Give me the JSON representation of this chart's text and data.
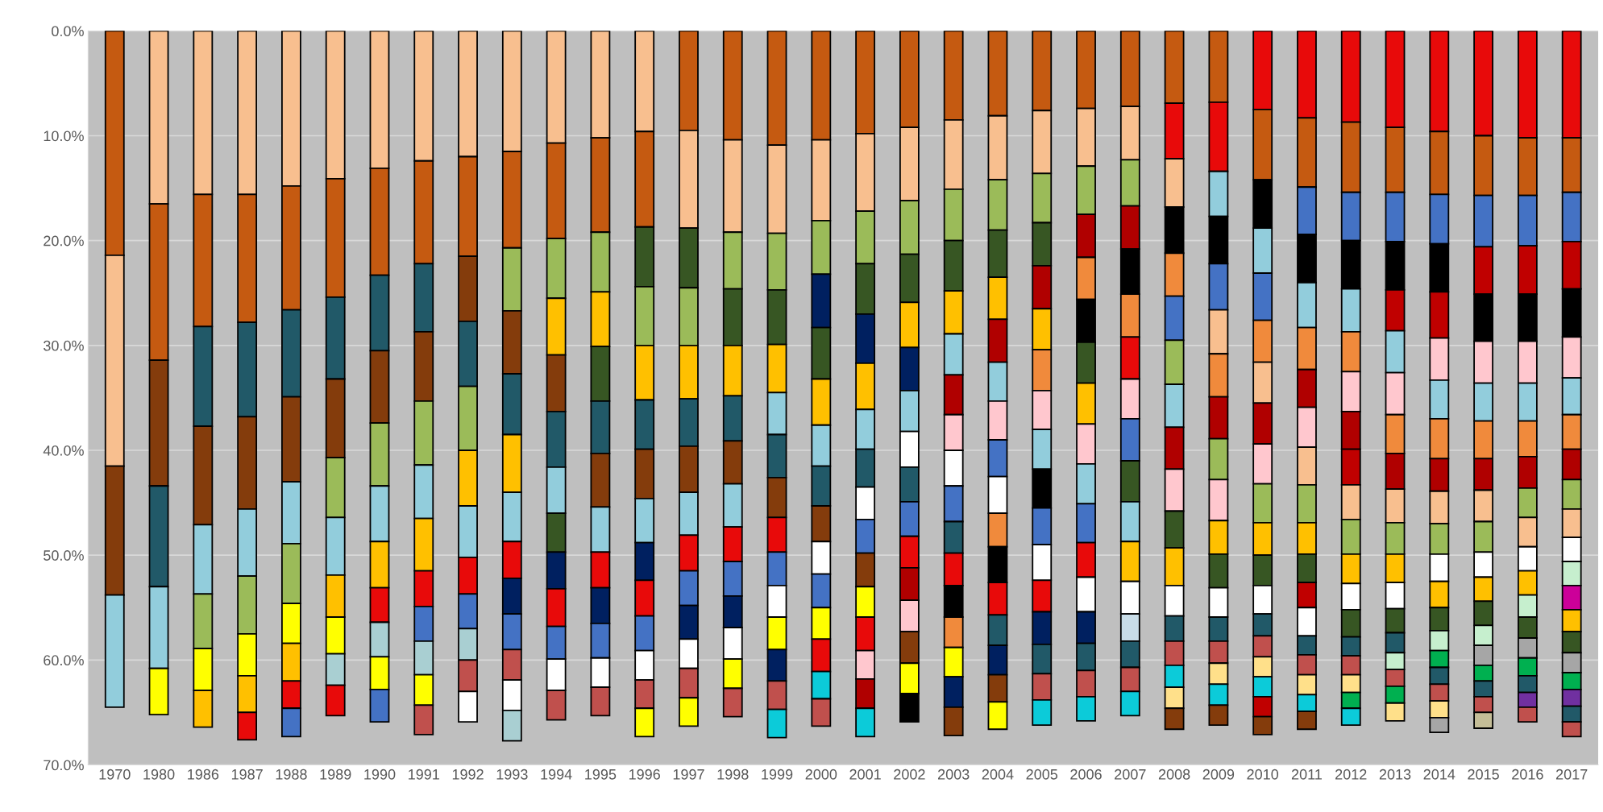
{
  "chart_data": {
    "type": "bar",
    "stacked": true,
    "grid": "y",
    "categories": [
      "1970",
      "1980",
      "1986",
      "1987",
      "1988",
      "1989",
      "1990",
      "1991",
      "1992",
      "1993",
      "1994",
      "1995",
      "1996",
      "1997",
      "1998",
      "1999",
      "2000",
      "2001",
      "2002",
      "2003",
      "2004",
      "2005",
      "2006",
      "2007",
      "2008",
      "2009",
      "2010",
      "2011",
      "2012",
      "2013",
      "2014",
      "2015",
      "2016",
      "2017"
    ],
    "ylim": [
      70,
      0
    ],
    "yticks": [
      {
        "value": 0,
        "label": "0.0%"
      },
      {
        "value": 10,
        "label": "10.0%"
      },
      {
        "value": 20,
        "label": "20.0%"
      },
      {
        "value": 30,
        "label": "30.0%"
      },
      {
        "value": 40,
        "label": "40.0%"
      },
      {
        "value": 50,
        "label": "50.0%"
      },
      {
        "value": 60,
        "label": "60.0%"
      },
      {
        "value": 70,
        "label": "70.0%"
      }
    ],
    "series": [
      {
        "values": [
          21.4,
          16.5,
          15.6,
          15.6,
          14.8,
          14.1,
          13.1,
          12.4,
          12.0,
          11.5,
          10.7,
          10.2,
          9.6,
          9.5,
          10.4,
          10.9,
          10.4,
          9.8,
          9.2,
          8.5,
          8.1,
          7.6,
          7.4,
          7.2,
          6.9,
          6.8,
          7.5,
          8.3,
          8.7,
          9.2,
          9.6,
          10.0,
          10.2,
          10.2
        ],
        "colors": [
          "#c55a11",
          "#f8bf8f",
          "#f8bf8f",
          "#f8bf8f",
          "#f8bf8f",
          "#f8bf8f",
          "#f8bf8f",
          "#f8bf8f",
          "#f8bf8f",
          "#f8bf8f",
          "#f8bf8f",
          "#f8bf8f",
          "#f8bf8f",
          "#c55a11",
          "#c55a11",
          "#c55a11",
          "#c55a11",
          "#c55a11",
          "#c55a11",
          "#c55a11",
          "#c55a11",
          "#c55a11",
          "#c55a11",
          "#c55a11",
          "#c55a11",
          "#c55a11",
          "#e80a0a",
          "#e80a0a",
          "#e80a0a",
          "#e80a0a",
          "#e80a0a",
          "#e80a0a",
          "#e80a0a",
          "#e80a0a"
        ]
      },
      {
        "values": [
          20.1,
          14.9,
          12.6,
          12.2,
          11.8,
          11.3,
          10.2,
          9.8,
          9.5,
          9.2,
          9.1,
          9.0,
          9.1,
          9.3,
          8.8,
          8.4,
          7.7,
          7.4,
          7.0,
          6.6,
          6.1,
          6.0,
          5.5,
          5.1,
          5.3,
          6.6,
          6.7,
          6.6,
          6.7,
          6.2,
          6.0,
          5.7,
          5.5,
          5.2
        ],
        "colors": [
          "#f8bf8f",
          "#c55a11",
          "#c55a11",
          "#c55a11",
          "#c55a11",
          "#c55a11",
          "#c55a11",
          "#c55a11",
          "#c55a11",
          "#c55a11",
          "#c55a11",
          "#c55a11",
          "#c55a11",
          "#f8bf8f",
          "#f8bf8f",
          "#f8bf8f",
          "#f8bf8f",
          "#f8bf8f",
          "#f8bf8f",
          "#f8bf8f",
          "#f8bf8f",
          "#f8bf8f",
          "#f8bf8f",
          "#f8bf8f",
          "#e80a0a",
          "#e80a0a",
          "#c55a11",
          "#c55a11",
          "#c55a11",
          "#c55a11",
          "#c55a11",
          "#c55a11",
          "#c55a11",
          "#c55a11"
        ]
      },
      {
        "values": [
          12.3,
          12.0,
          9.5,
          9.0,
          8.3,
          7.8,
          7.2,
          6.5,
          6.2,
          6.0,
          5.7,
          5.7,
          5.7,
          5.7,
          5.4,
          5.4,
          5.1,
          5.0,
          5.1,
          4.9,
          4.8,
          4.7,
          4.6,
          4.4,
          4.6,
          4.3,
          4.6,
          4.5,
          4.6,
          4.7,
          4.7,
          4.9,
          4.8,
          4.7
        ],
        "colors": [
          "#843c0c",
          "#843c0c",
          "#215968",
          "#215968",
          "#215968",
          "#215968",
          "#215968",
          "#215968",
          "#843c0c",
          "#9bbb59",
          "#9bbb59",
          "#9bbb59",
          "#375623",
          "#375623",
          "#9bbb59",
          "#9bbb59",
          "#9bbb59",
          "#9bbb59",
          "#9bbb59",
          "#9bbb59",
          "#9bbb59",
          "#9bbb59",
          "#9bbb59",
          "#9bbb59",
          "#f8bf8f",
          "#92cddc",
          "#000000",
          "#4472c4",
          "#4472c4",
          "#4472c4",
          "#4472c4",
          "#4472c4",
          "#4472c4",
          "#4472c4"
        ]
      },
      {
        "values": [
          10.7,
          9.6,
          9.4,
          8.8,
          8.1,
          7.5,
          6.9,
          6.6,
          6.2,
          6.0,
          5.4,
          5.2,
          5.6,
          5.5,
          5.4,
          5.2,
          5.1,
          4.8,
          4.6,
          4.8,
          4.5,
          4.1,
          4.1,
          4.1,
          4.4,
          4.5,
          4.3,
          4.6,
          4.6,
          4.6,
          4.6,
          4.5,
          4.6,
          4.5
        ],
        "colors": [
          "#92cddc",
          "#215968",
          "#843c0c",
          "#843c0c",
          "#843c0c",
          "#843c0c",
          "#843c0c",
          "#843c0c",
          "#215968",
          "#843c0c",
          "#ffc000",
          "#ffc000",
          "#9bbb59",
          "#9bbb59",
          "#375623",
          "#375623",
          "#002060",
          "#375623",
          "#375623",
          "#375623",
          "#375623",
          "#375623",
          "#b00000",
          "#b00000",
          "#000000",
          "#000000",
          "#92cddc",
          "#000000",
          "#000000",
          "#000000",
          "#000000",
          "#c00000",
          "#c00000",
          "#c00000"
        ]
      },
      {
        "values": [
          null,
          7.8,
          6.6,
          6.4,
          5.9,
          5.7,
          6.0,
          6.1,
          6.1,
          5.8,
          5.4,
          5.2,
          5.2,
          5.1,
          4.8,
          4.6,
          4.9,
          4.7,
          4.3,
          4.1,
          4.0,
          4.1,
          4.0,
          4.3,
          4.1,
          4.4,
          4.5,
          4.3,
          4.1,
          3.9,
          4.4,
          4.5,
          4.5,
          4.6
        ],
        "colors": [
          null,
          "#92cddc",
          "#92cddc",
          "#92cddc",
          "#92cddc",
          "#9bbb59",
          "#9bbb59",
          "#9bbb59",
          "#9bbb59",
          "#215968",
          "#843c0c",
          "#375623",
          "#ffc000",
          "#ffc000",
          "#ffc000",
          "#ffc000",
          "#375623",
          "#002060",
          "#ffc000",
          "#ffc000",
          "#ffc000",
          "#b00000",
          "#f08a3c",
          "#000000",
          "#f08a3c",
          "#4472c4",
          "#4472c4",
          "#92cddc",
          "#92cddc",
          "#c00000",
          "#c00000",
          "#000000",
          "#000000",
          "#000000"
        ]
      },
      {
        "values": [
          null,
          4.4,
          5.2,
          5.5,
          5.7,
          5.5,
          5.3,
          5.1,
          5.3,
          5.5,
          5.3,
          5.0,
          4.7,
          4.5,
          4.3,
          4.0,
          4.4,
          4.4,
          4.1,
          3.9,
          4.1,
          3.9,
          4.1,
          4.1,
          4.2,
          4.2,
          4.0,
          4.0,
          3.8,
          4.0,
          4.0,
          4.0,
          4.0,
          3.9
        ],
        "colors": [
          null,
          "#ffff00",
          "#9bbb59",
          "#9bbb59",
          "#9bbb59",
          "#92cddc",
          "#92cddc",
          "#92cddc",
          "#ffc000",
          "#ffc000",
          "#215968",
          "#215968",
          "#215968",
          "#215968",
          "#215968",
          "#92cddc",
          "#ffc000",
          "#ffc000",
          "#002060",
          "#92cddc",
          "#b00000",
          "#ffc000",
          "#000000",
          "#f08a3c",
          "#4472c4",
          "#f8bf8f",
          "#f08a3c",
          "#f08a3c",
          "#f08a3c",
          "#92cddc",
          "#ffc7ce",
          "#ffc7ce",
          "#ffc7ce",
          "#ffc7ce"
        ]
      },
      {
        "values": [
          null,
          null,
          4.0,
          4.0,
          3.8,
          4.0,
          4.4,
          5.0,
          4.9,
          4.7,
          4.4,
          5.1,
          4.7,
          4.4,
          4.1,
          4.1,
          3.9,
          3.8,
          3.9,
          3.8,
          3.7,
          3.9,
          3.9,
          4.0,
          4.2,
          4.1,
          3.9,
          3.6,
          3.8,
          4.0,
          3.7,
          3.6,
          3.6,
          3.5
        ],
        "colors": [
          null,
          null,
          "#ffff00",
          "#ffff00",
          "#ffff00",
          "#ffc000",
          "#ffc000",
          "#ffc000",
          "#92cddc",
          "#92cddc",
          "#92cddc",
          "#843c0c",
          "#843c0c",
          "#843c0c",
          "#843c0c",
          "#215968",
          "#92cddc",
          "#92cddc",
          "#92cddc",
          "#b00000",
          "#92cddc",
          "#f08a3c",
          "#375623",
          "#e80a0a",
          "#9bbb59",
          "#f08a3c",
          "#f8bf8f",
          "#b00000",
          "#ffc7ce",
          "#ffc7ce",
          "#92cddc",
          "#92cddc",
          "#92cddc",
          "#92cddc"
        ]
      },
      {
        "values": [
          null,
          null,
          3.5,
          3.5,
          3.6,
          3.5,
          3.3,
          3.4,
          3.5,
          3.5,
          3.7,
          4.3,
          4.2,
          4.1,
          4.1,
          3.8,
          3.8,
          3.6,
          3.4,
          3.4,
          3.7,
          3.7,
          3.9,
          3.8,
          4.1,
          4.0,
          3.9,
          3.8,
          3.6,
          3.7,
          3.8,
          3.6,
          3.4,
          3.3
        ],
        "colors": [
          null,
          null,
          "#ffc000",
          "#ffc000",
          "#ffc000",
          "#ffff00",
          "#e80a0a",
          "#e80a0a",
          "#e80a0a",
          "#e80a0a",
          "#375623",
          "#92cddc",
          "#92cddc",
          "#92cddc",
          "#92cddc",
          "#843c0c",
          "#215968",
          "#215968",
          "#ffffff",
          "#ffc7ce",
          "#ffc7ce",
          "#ffc7ce",
          "#ffc000",
          "#ffc7ce",
          "#92cddc",
          "#b00000",
          "#b00000",
          "#ffc7ce",
          "#b00000",
          "#f08a3c",
          "#f08a3c",
          "#f08a3c",
          "#f08a3c",
          "#f08a3c"
        ]
      },
      {
        "values": [
          null,
          null,
          null,
          2.6,
          2.6,
          3.0,
          3.3,
          3.3,
          3.3,
          3.4,
          3.5,
          3.4,
          3.6,
          3.4,
          3.3,
          3.3,
          3.4,
          3.1,
          3.3,
          3.4,
          3.5,
          3.8,
          3.8,
          4.0,
          4.0,
          3.9,
          3.8,
          3.6,
          3.4,
          3.4,
          3.1,
          3.0,
          3.0,
          2.9
        ],
        "colors": [
          null,
          null,
          null,
          "#e80a0a",
          "#e80a0a",
          "#a9cfd2",
          "#a9cfd2",
          "#4472c4",
          "#4472c4",
          "#002060",
          "#002060",
          "#e80a0a",
          "#002060",
          "#e80a0a",
          "#e80a0a",
          "#e80a0a",
          "#843c0c",
          "#ffffff",
          "#215968",
          "#ffffff",
          "#4472c4",
          "#92cddc",
          "#ffc7ce",
          "#4472c4",
          "#b00000",
          "#9bbb59",
          "#ffc7ce",
          "#f8bf8f",
          "#c00000",
          "#b00000",
          "#b00000",
          "#b00000",
          "#b00000",
          "#b00000"
        ]
      },
      {
        "values": [
          null,
          null,
          null,
          null,
          2.7,
          2.9,
          3.1,
          3.2,
          3.0,
          3.4,
          3.6,
          3.4,
          3.4,
          3.3,
          3.3,
          3.2,
          3.1,
          3.2,
          3.3,
          3.4,
          3.5,
          3.7,
          3.8,
          3.9,
          4.0,
          3.9,
          3.7,
          3.6,
          3.3,
          3.2,
          3.1,
          3.0,
          2.8,
          2.8
        ],
        "colors": [
          null,
          null,
          null,
          null,
          "#4472c4",
          "#e80a0a",
          "#ffff00",
          "#a9cfd2",
          "#a9cfd2",
          "#4472c4",
          "#e80a0a",
          "#002060",
          "#e80a0a",
          "#4472c4",
          "#4472c4",
          "#4472c4",
          "#ffffff",
          "#4472c4",
          "#4472c4",
          "#4472c4",
          "#ffffff",
          "#000000",
          "#92cddc",
          "#375623",
          "#ffc7ce",
          "#ffc7ce",
          "#9bbb59",
          "#9bbb59",
          "#f8bf8f",
          "#f8bf8f",
          "#f8bf8f",
          "#f8bf8f",
          "#9bbb59",
          "#9bbb59"
        ]
      },
      {
        "values": [
          null,
          null,
          null,
          null,
          null,
          null,
          3.1,
          2.9,
          3.0,
          2.9,
          3.1,
          3.3,
          3.3,
          3.2,
          3.0,
          3.0,
          3.2,
          3.2,
          3.0,
          3.0,
          3.2,
          3.5,
          3.7,
          3.8,
          3.5,
          3.2,
          3.1,
          3.0,
          3.3,
          3.0,
          2.9,
          2.9,
          2.8,
          2.7
        ],
        "colors": [
          null,
          null,
          null,
          null,
          null,
          null,
          "#4472c4",
          "#ffff00",
          "#c0504d",
          "#c0504d",
          "#4472c4",
          "#4472c4",
          "#4472c4",
          "#002060",
          "#002060",
          "#ffffff",
          "#4472c4",
          "#843c0c",
          "#e80a0a",
          "#215968",
          "#f08a3c",
          "#4472c4",
          "#4472c4",
          "#92cddc",
          "#375623",
          "#ffc000",
          "#ffc000",
          "#ffc000",
          "#9bbb59",
          "#9bbb59",
          "#9bbb59",
          "#9bbb59",
          "#f8bf8f",
          "#f8bf8f"
        ]
      },
      {
        "values": [
          null,
          null,
          null,
          null,
          null,
          null,
          null,
          2.8,
          2.9,
          2.9,
          3.0,
          2.8,
          2.8,
          2.8,
          3.0,
          3.1,
          3.0,
          2.9,
          3.1,
          3.1,
          3.4,
          3.4,
          3.3,
          3.8,
          3.6,
          3.2,
          2.9,
          2.7,
          2.8,
          2.7,
          2.6,
          2.4,
          2.3,
          2.3
        ],
        "colors": [
          null,
          null,
          null,
          null,
          null,
          null,
          null,
          "#c0504d",
          "#ffffff",
          "#ffffff",
          "#ffffff",
          "#ffffff",
          "#ffffff",
          "#ffffff",
          "#ffffff",
          "#ffff00",
          "#ffff00",
          "#ffff00",
          "#b00000",
          "#e80a0a",
          "#000000",
          "#ffffff",
          "#e80a0a",
          "#ffc000",
          "#ffc000",
          "#375623",
          "#375623",
          "#375623",
          "#ffc000",
          "#ffc000",
          "#ffffff",
          "#ffffff",
          "#ffffff",
          "#ffffff"
        ]
      },
      {
        "values": [
          null,
          null,
          null,
          null,
          null,
          null,
          null,
          null,
          null,
          2.9,
          2.8,
          2.7,
          2.7,
          2.8,
          2.8,
          3.0,
          3.1,
          3.2,
          3.0,
          3.0,
          3.1,
          3.0,
          3.3,
          3.1,
          2.9,
          2.8,
          2.7,
          2.4,
          2.5,
          2.5,
          2.5,
          2.3,
          2.3,
          2.3
        ],
        "colors": [
          null,
          null,
          null,
          null,
          null,
          null,
          null,
          null,
          null,
          "#a9cfd2",
          "#c0504d",
          "#c0504d",
          "#c0504d",
          "#c0504d",
          "#ffff00",
          "#002060",
          "#e80a0a",
          "#e80a0a",
          "#ffc7ce",
          "#000000",
          "#e80a0a",
          "#e80a0a",
          "#ffffff",
          "#ffffff",
          "#ffffff",
          "#ffffff",
          "#ffffff",
          "#c00000",
          "#ffffff",
          "#ffffff",
          "#ffc000",
          "#ffc000",
          "#ffc000",
          "#c6efce"
        ]
      },
      {
        "values": [
          null,
          null,
          null,
          null,
          null,
          null,
          null,
          null,
          null,
          null,
          null,
          null,
          2.7,
          2.7,
          2.7,
          2.7,
          2.6,
          2.7,
          3.0,
          2.9,
          2.9,
          3.1,
          3.0,
          2.6,
          2.4,
          2.3,
          2.1,
          2.7,
          2.6,
          2.3,
          2.2,
          2.3,
          2.1,
          2.3
        ],
        "colors": [
          null,
          null,
          null,
          null,
          null,
          null,
          null,
          null,
          null,
          null,
          null,
          null,
          "#ffff00",
          "#ffff00",
          "#c0504d",
          "#c0504d",
          "#0ccbd9",
          "#ffc7ce",
          "#843c0c",
          "#f08a3c",
          "#215968",
          "#002060",
          "#002060",
          "#c9dde8",
          "#215968",
          "#215968",
          "#215968",
          "#ffffff",
          "#375623",
          "#375623",
          "#375623",
          "#375623",
          "#c6efce",
          "#cc0099"
        ]
      },
      {
        "values": [
          null,
          null,
          null,
          null,
          null,
          null,
          null,
          null,
          null,
          null,
          null,
          null,
          null,
          null,
          null,
          2.7,
          2.6,
          2.8,
          2.9,
          2.8,
          2.8,
          2.8,
          2.6,
          2.5,
          2.3,
          2.1,
          2.0,
          1.8,
          1.8,
          1.9,
          1.9,
          1.9,
          2.0,
          2.1
        ],
        "colors": [
          null,
          null,
          null,
          null,
          null,
          null,
          null,
          null,
          null,
          null,
          null,
          null,
          null,
          null,
          null,
          "#0ccbd9",
          "#c0504d",
          "#b00000",
          "#ffff00",
          "#ffff00",
          "#002060",
          "#215968",
          "#215968",
          "#215968",
          "#c0504d",
          "#c0504d",
          "#c0504d",
          "#215968",
          "#215968",
          "#215968",
          "#c6efce",
          "#c6efce",
          "#375623",
          "#ffc000"
        ]
      },
      {
        "values": [
          null,
          null,
          null,
          null,
          null,
          null,
          null,
          null,
          null,
          null,
          null,
          null,
          null,
          null,
          null,
          null,
          null,
          2.7,
          2.7,
          2.9,
          2.6,
          2.5,
          2.5,
          2.3,
          2.1,
          2.0,
          1.9,
          1.9,
          1.8,
          1.6,
          1.6,
          1.9,
          1.9,
          2.0
        ],
        "colors": [
          null,
          null,
          null,
          null,
          null,
          null,
          null,
          null,
          null,
          null,
          null,
          null,
          null,
          null,
          null,
          null,
          null,
          "#0ccbd9",
          "#000000",
          "#002060",
          "#843c0c",
          "#c0504d",
          "#c0504d",
          "#c0504d",
          "#0ccbd9",
          "#ffe08a",
          "#ffe08a",
          "#c0504d",
          "#c0504d",
          "#c6efce",
          "#00b050",
          "#a6a6a6",
          "#a6a6a6",
          "#375623"
        ]
      },
      {
        "values": [
          null,
          null,
          null,
          null,
          null,
          null,
          null,
          null,
          null,
          null,
          null,
          null,
          null,
          null,
          null,
          null,
          null,
          null,
          null,
          2.7,
          2.6,
          2.4,
          2.3,
          2.3,
          2.0,
          2.0,
          1.9,
          1.9,
          1.7,
          1.6,
          1.6,
          1.5,
          1.7,
          1.9
        ],
        "colors": [
          null,
          null,
          null,
          null,
          null,
          null,
          null,
          null,
          null,
          null,
          null,
          null,
          null,
          null,
          null,
          null,
          null,
          null,
          null,
          "#843c0c",
          "#ffff00",
          "#0ccbd9",
          "#0ccbd9",
          "#0ccbd9",
          "#ffe08a",
          "#0ccbd9",
          "#0ccbd9",
          "#ffe08a",
          "#ffe08a",
          "#c0504d",
          "#215968",
          "#00b050",
          "#00b050",
          "#a6a6a6"
        ]
      },
      {
        "values": [
          null,
          null,
          null,
          null,
          null,
          null,
          null,
          null,
          null,
          null,
          null,
          null,
          null,
          null,
          null,
          null,
          null,
          null,
          null,
          null,
          null,
          null,
          null,
          null,
          2.0,
          1.9,
          1.9,
          1.6,
          1.5,
          1.6,
          1.6,
          1.5,
          1.6,
          1.6
        ],
        "colors": [
          null,
          null,
          null,
          null,
          null,
          null,
          null,
          null,
          null,
          null,
          null,
          null,
          null,
          null,
          null,
          null,
          null,
          null,
          null,
          null,
          null,
          null,
          null,
          null,
          "#843c0c",
          "#843c0c",
          "#c00000",
          "#0ccbd9",
          "#00b050",
          "#00b050",
          "#c0504d",
          "#215968",
          "#215968",
          "#00b050"
        ]
      },
      {
        "values": [
          null,
          null,
          null,
          null,
          null,
          null,
          null,
          null,
          null,
          null,
          null,
          null,
          null,
          null,
          null,
          null,
          null,
          null,
          null,
          null,
          null,
          null,
          null,
          null,
          null,
          null,
          1.7,
          1.7,
          1.6,
          1.7,
          1.6,
          1.5,
          1.4,
          1.6
        ],
        "colors": [
          null,
          null,
          null,
          null,
          null,
          null,
          null,
          null,
          null,
          null,
          null,
          null,
          null,
          null,
          null,
          null,
          null,
          null,
          null,
          null,
          null,
          null,
          null,
          null,
          null,
          null,
          "#843c0c",
          "#843c0c",
          "#0ccbd9",
          "#ffe08a",
          "#ffe08a",
          "#c0504d",
          "#7030a0",
          "#7030a0"
        ]
      },
      {
        "values": [
          null,
          null,
          null,
          null,
          null,
          null,
          null,
          null,
          null,
          null,
          null,
          null,
          null,
          null,
          null,
          null,
          null,
          null,
          null,
          null,
          null,
          null,
          null,
          null,
          null,
          null,
          null,
          null,
          null,
          null,
          1.4,
          1.5,
          1.4,
          1.5
        ],
        "colors": [
          null,
          null,
          null,
          null,
          null,
          null,
          null,
          null,
          null,
          null,
          null,
          null,
          null,
          null,
          null,
          null,
          null,
          null,
          null,
          null,
          null,
          null,
          null,
          null,
          null,
          null,
          null,
          null,
          null,
          null,
          "#a6a6a6",
          "#c4bd97",
          "#c0504d",
          "#215968"
        ]
      },
      {
        "values": [
          null,
          null,
          null,
          null,
          null,
          null,
          null,
          null,
          null,
          null,
          null,
          null,
          null,
          null,
          null,
          null,
          null,
          null,
          null,
          null,
          null,
          null,
          null,
          null,
          null,
          null,
          null,
          null,
          null,
          null,
          null,
          null,
          null,
          1.4
        ],
        "colors": [
          null,
          null,
          null,
          null,
          null,
          null,
          null,
          null,
          null,
          null,
          null,
          null,
          null,
          null,
          null,
          null,
          null,
          null,
          null,
          null,
          null,
          null,
          null,
          null,
          null,
          null,
          null,
          null,
          null,
          null,
          null,
          null,
          null,
          "#c0504d"
        ]
      }
    ]
  }
}
